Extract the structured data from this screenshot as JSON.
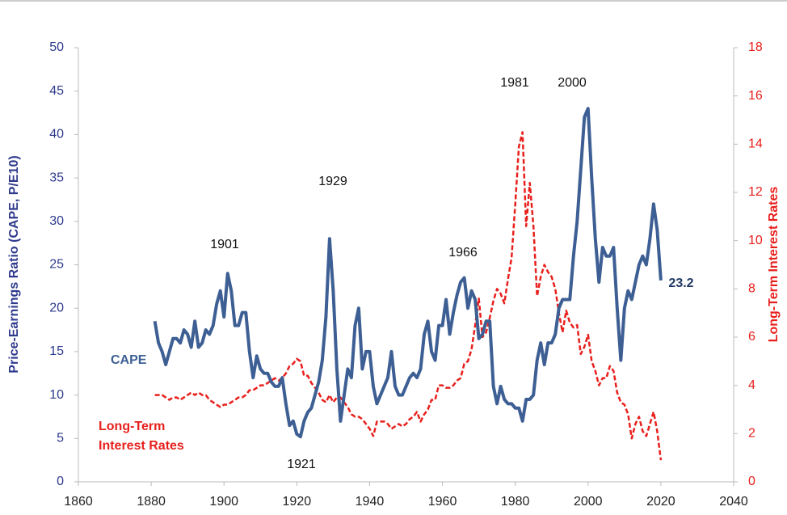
{
  "chart_data": {
    "type": "line",
    "y_label": "Price-Earnings Ratio (CAPE, P/E10)",
    "y2_label": "Long-Term Interest Rates",
    "x": [
      1881,
      1882,
      1883,
      1884,
      1885,
      1886,
      1887,
      1888,
      1889,
      1890,
      1891,
      1892,
      1893,
      1894,
      1895,
      1896,
      1897,
      1898,
      1899,
      1900,
      1901,
      1902,
      1903,
      1904,
      1905,
      1906,
      1907,
      1908,
      1909,
      1910,
      1911,
      1912,
      1913,
      1914,
      1915,
      1916,
      1917,
      1918,
      1919,
      1920,
      1921,
      1922,
      1923,
      1924,
      1925,
      1926,
      1927,
      1928,
      1929,
      1930,
      1931,
      1932,
      1933,
      1934,
      1935,
      1936,
      1937,
      1938,
      1939,
      1940,
      1941,
      1942,
      1943,
      1944,
      1945,
      1946,
      1947,
      1948,
      1949,
      1950,
      1951,
      1952,
      1953,
      1954,
      1955,
      1956,
      1957,
      1958,
      1959,
      1960,
      1961,
      1962,
      1963,
      1964,
      1965,
      1966,
      1967,
      1968,
      1969,
      1970,
      1971,
      1972,
      1973,
      1974,
      1975,
      1976,
      1977,
      1978,
      1979,
      1980,
      1981,
      1982,
      1983,
      1984,
      1985,
      1986,
      1987,
      1988,
      1989,
      1990,
      1991,
      1992,
      1993,
      1994,
      1995,
      1996,
      1997,
      1998,
      1999,
      2000,
      2001,
      2002,
      2003,
      2004,
      2005,
      2006,
      2007,
      2008,
      2009,
      2010,
      2011,
      2012,
      2013,
      2014,
      2015,
      2016,
      2017,
      2018,
      2019,
      2020
    ],
    "series": [
      {
        "name": "CAPE",
        "color": "#3d5f94",
        "line_style": "solid",
        "values": [
          18.5,
          16,
          15,
          13.5,
          15,
          16.5,
          16.5,
          16,
          17.5,
          17,
          15.5,
          18.5,
          15.5,
          16,
          17.5,
          17,
          18,
          20.5,
          22,
          19,
          24,
          22,
          18,
          18,
          19.5,
          19.5,
          15,
          12,
          14.5,
          13,
          12.5,
          12.5,
          11.5,
          11,
          11,
          12,
          9,
          6.5,
          7,
          5.5,
          5.2,
          7,
          8,
          8.5,
          10,
          11.5,
          14,
          19,
          28,
          22,
          13,
          7,
          10,
          13,
          12,
          18,
          20,
          13,
          15,
          15,
          11,
          9,
          10,
          11,
          12,
          15,
          11,
          10,
          10,
          11,
          12,
          12.5,
          12,
          13,
          17,
          18.5,
          15,
          14,
          18,
          18,
          21,
          17,
          19.5,
          21.5,
          23,
          23.5,
          20,
          22,
          21,
          16.5,
          17,
          18.5,
          18.5,
          11,
          9,
          11,
          9.5,
          9,
          9,
          8.5,
          8.5,
          7,
          9.5,
          9.5,
          10,
          14,
          16,
          13.5,
          16,
          16,
          17,
          20,
          21,
          21,
          21,
          26,
          30,
          36,
          42,
          43,
          35,
          28,
          23,
          27,
          26,
          26,
          27,
          20,
          14,
          20,
          22,
          21,
          23,
          25,
          26,
          25,
          28,
          32,
          29,
          23.2
        ]
      },
      {
        "name": "Long-Term Interest Rates",
        "color": "#e8201c",
        "line_style": "dashed",
        "axis": "y2",
        "values": [
          3.6,
          3.6,
          3.6,
          3.5,
          3.4,
          3.5,
          3.5,
          3.4,
          3.5,
          3.6,
          3.7,
          3.6,
          3.7,
          3.6,
          3.6,
          3.4,
          3.3,
          3.2,
          3.1,
          3.2,
          3.2,
          3.3,
          3.4,
          3.5,
          3.5,
          3.6,
          3.8,
          3.8,
          3.9,
          4.0,
          4.0,
          4.1,
          4.2,
          4.3,
          4.2,
          4.3,
          4.5,
          4.8,
          4.9,
          5.1,
          5.0,
          4.4,
          4.4,
          4.1,
          3.9,
          3.7,
          3.4,
          3.3,
          3.6,
          3.3,
          3.5,
          3.5,
          3.3,
          3.1,
          2.8,
          2.7,
          2.7,
          2.6,
          2.4,
          2.2,
          1.9,
          2.5,
          2.5,
          2.5,
          2.4,
          2.2,
          2.3,
          2.4,
          2.3,
          2.4,
          2.6,
          2.7,
          2.9,
          2.5,
          2.8,
          3.0,
          3.4,
          3.4,
          4.0,
          4.0,
          3.9,
          3.9,
          4.0,
          4.2,
          4.3,
          4.9,
          5.0,
          5.5,
          6.5,
          7.6,
          6.0,
          6.2,
          6.8,
          7.5,
          8.0,
          7.8,
          7.4,
          8.4,
          9.3,
          11.5,
          13.9,
          14.5,
          10.6,
          12.4,
          10.6,
          7.7,
          8.5,
          9.0,
          8.7,
          8.5,
          8.0,
          7.0,
          6.2,
          7.1,
          6.6,
          6.4,
          6.5,
          5.3,
          5.6,
          6.1,
          5.0,
          4.6,
          4.0,
          4.3,
          4.3,
          4.8,
          4.6,
          3.7,
          3.3,
          3.2,
          2.8,
          1.8,
          2.4,
          2.7,
          2.1,
          1.9,
          2.4,
          2.9,
          2.1,
          0.9
        ]
      }
    ],
    "annotations": [
      "1901",
      "1929",
      "1921",
      "1966",
      "1981",
      "2000",
      "23.2"
    ],
    "xlim": [
      1860,
      2040
    ],
    "xticks": [
      1860,
      1880,
      1900,
      1920,
      1940,
      1960,
      1980,
      2000,
      2020,
      2040
    ],
    "ylim": [
      0,
      50
    ],
    "yticks": [
      0,
      5,
      10,
      15,
      20,
      25,
      30,
      35,
      40,
      45,
      50
    ],
    "y2lim": [
      0,
      18
    ],
    "y2ticks": [
      0,
      2,
      4,
      6,
      8,
      10,
      12,
      14,
      16,
      18
    ],
    "grid": false
  }
}
